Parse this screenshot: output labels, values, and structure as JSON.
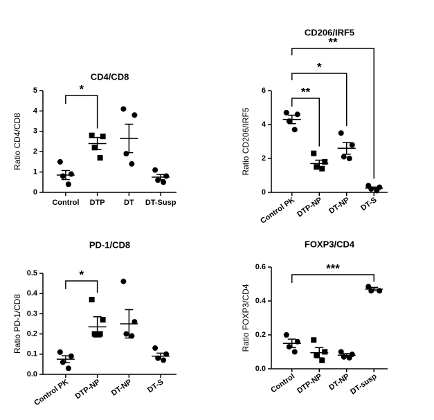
{
  "chart_data": [
    {
      "type": "dot",
      "title": "CD4/CD8",
      "ylabel": "Ratio CD4/CD8",
      "categories": [
        "Control",
        "DTP",
        "DT",
        "DT-Susp"
      ],
      "groups": [
        {
          "marker": "circle",
          "points": [
            1.5,
            0.9,
            0.8,
            0.4
          ],
          "mean": 0.85,
          "sem": 0.22
        },
        {
          "marker": "square",
          "points": [
            2.8,
            2.75,
            2.2,
            1.7
          ],
          "mean": 2.4,
          "sem": 0.3
        },
        {
          "marker": "circle",
          "points": [
            4.1,
            3.8,
            1.9,
            1.4
          ],
          "mean": 2.65,
          "sem": 0.7
        },
        {
          "marker": "circle",
          "points": [
            1.1,
            0.8,
            0.6,
            0.5
          ],
          "mean": 0.75,
          "sem": 0.13
        }
      ],
      "ylim": [
        0,
        5
      ],
      "yticks": [
        0,
        1,
        2,
        3,
        4,
        5
      ],
      "annotations": [
        {
          "text": "*",
          "from": 0,
          "to": 1
        }
      ]
    },
    {
      "type": "dot",
      "title": "CD206/IRF5",
      "ylabel": "Ratio CD206/IRF5",
      "categories": [
        "Control PK",
        "DTP-NP",
        "DT-NP",
        "DT-S"
      ],
      "groups": [
        {
          "marker": "circle",
          "points": [
            4.7,
            4.6,
            4.2,
            3.7
          ],
          "mean": 4.3,
          "sem": 0.25
        },
        {
          "marker": "square",
          "points": [
            2.3,
            1.8,
            1.5,
            1.4
          ],
          "mean": 1.7,
          "sem": 0.2
        },
        {
          "marker": "circle",
          "points": [
            3.5,
            2.8,
            2.1,
            2.0
          ],
          "mean": 2.6,
          "sem": 0.35
        },
        {
          "marker": "circle",
          "points": [
            0.4,
            0.3,
            0.2,
            0.1
          ],
          "mean": 0.25,
          "sem": 0.06
        }
      ],
      "ylim": [
        0,
        6
      ],
      "yticks": [
        0,
        2,
        4,
        6
      ],
      "annotations": [
        {
          "text": "**",
          "from": 0,
          "to": 1
        },
        {
          "text": "*",
          "from": 0,
          "to": 2
        },
        {
          "text": "**",
          "from": 0,
          "to": 3
        }
      ]
    },
    {
      "type": "dot",
      "title": "PD-1/CD8",
      "ylabel": "Ratio PD-1/CD8",
      "categories": [
        "Control PK",
        "DTP-NP",
        "DT-NP",
        "DT-S"
      ],
      "groups": [
        {
          "marker": "circle",
          "points": [
            0.11,
            0.09,
            0.06,
            0.03
          ],
          "mean": 0.075,
          "sem": 0.017
        },
        {
          "marker": "square",
          "points": [
            0.37,
            0.27,
            0.2,
            0.2
          ],
          "mean": 0.235,
          "sem": 0.05
        },
        {
          "marker": "circle",
          "points": [
            0.46,
            0.26,
            0.2,
            0.19
          ],
          "mean": 0.25,
          "sem": 0.07
        },
        {
          "marker": "circle",
          "points": [
            0.13,
            0.1,
            0.08,
            0.07
          ],
          "mean": 0.09,
          "sem": 0.015
        }
      ],
      "ylim": [
        0,
        0.5
      ],
      "yticks": [
        {
          "value": 0,
          "label": "0.0"
        },
        0.1,
        0.2,
        0.3,
        0.4,
        0.5
      ],
      "annotations": [
        {
          "text": "*",
          "from": 0,
          "to": 1
        }
      ]
    },
    {
      "type": "dot",
      "title": "FOXP3/CD4",
      "ylabel": "Ratio FOXP3/CD4",
      "categories": [
        "Control",
        "DTP-NP",
        "DT-NP",
        "DT-susp"
      ],
      "groups": [
        {
          "marker": "circle",
          "points": [
            0.2,
            0.16,
            0.13,
            0.1
          ],
          "mean": 0.15,
          "sem": 0.025
        },
        {
          "marker": "square",
          "points": [
            0.17,
            0.1,
            0.08,
            0.05
          ],
          "mean": 0.095,
          "sem": 0.03
        },
        {
          "marker": "circle",
          "points": [
            0.1,
            0.085,
            0.07,
            0.065
          ],
          "mean": 0.08,
          "sem": 0.01
        },
        {
          "marker": "circle",
          "points": [
            0.485,
            0.46,
            0.46
          ],
          "mean": 0.47,
          "sem": 0.01
        }
      ],
      "ylim": [
        0,
        0.6
      ],
      "yticks": [
        {
          "value": 0,
          "label": "0.0"
        },
        0.2,
        0.4,
        0.6
      ],
      "annotations": [
        {
          "text": "***",
          "from": 0,
          "to": 3
        }
      ]
    }
  ]
}
